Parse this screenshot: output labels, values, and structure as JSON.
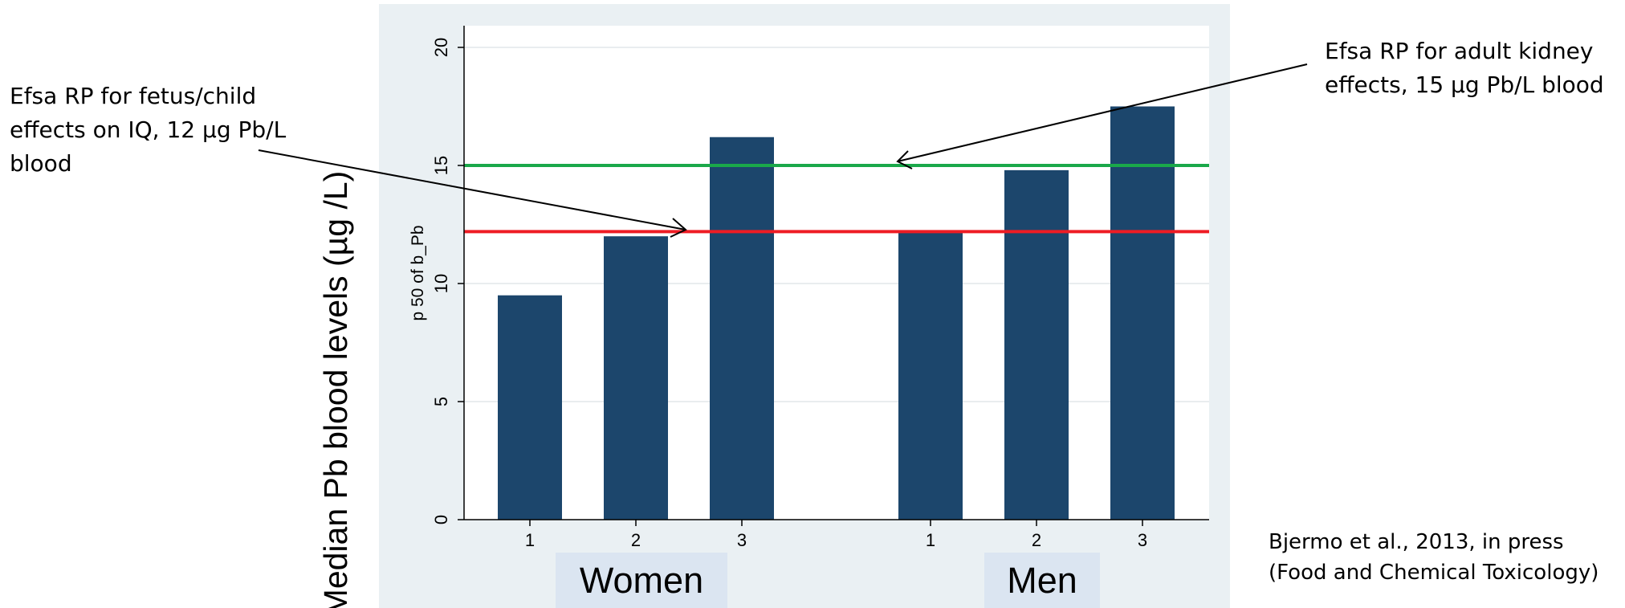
{
  "chart_data": {
    "type": "bar",
    "ylabel": "p 50 of b_Pb",
    "outer_ylabel": "Median Pb blood levels (µg /L)",
    "ylim": [
      0,
      21
    ],
    "yticks": [
      "0",
      "5",
      "10",
      "15",
      "20"
    ],
    "grid": true,
    "groups": [
      {
        "name": "Women",
        "categories": [
          "1",
          "2",
          "3"
        ],
        "values": [
          9.5,
          12.0,
          16.2
        ]
      },
      {
        "name": "Men",
        "categories": [
          "1",
          "2",
          "3"
        ],
        "values": [
          12.2,
          14.8,
          17.5
        ]
      }
    ],
    "reference_lines": [
      {
        "value": 15,
        "color": "#1aa84a"
      },
      {
        "value": 12.2,
        "color": "#ee1c24"
      }
    ],
    "bar_color": "#1c466c",
    "background_color": "#eaf0f3"
  },
  "annotations": {
    "fetus_child": [
      "Efsa RP for fetus/child",
      "effects on IQ, 12 µg Pb/L",
      "blood"
    ],
    "adult_kidney": [
      "Efsa RP for adult kidney",
      "effects, 15 µg Pb/L blood"
    ]
  },
  "citation": [
    "Bjermo et al., 2013, in press",
    "(Food and Chemical Toxicology)"
  ],
  "group_labels": {
    "women": "Women",
    "men": "Men"
  }
}
